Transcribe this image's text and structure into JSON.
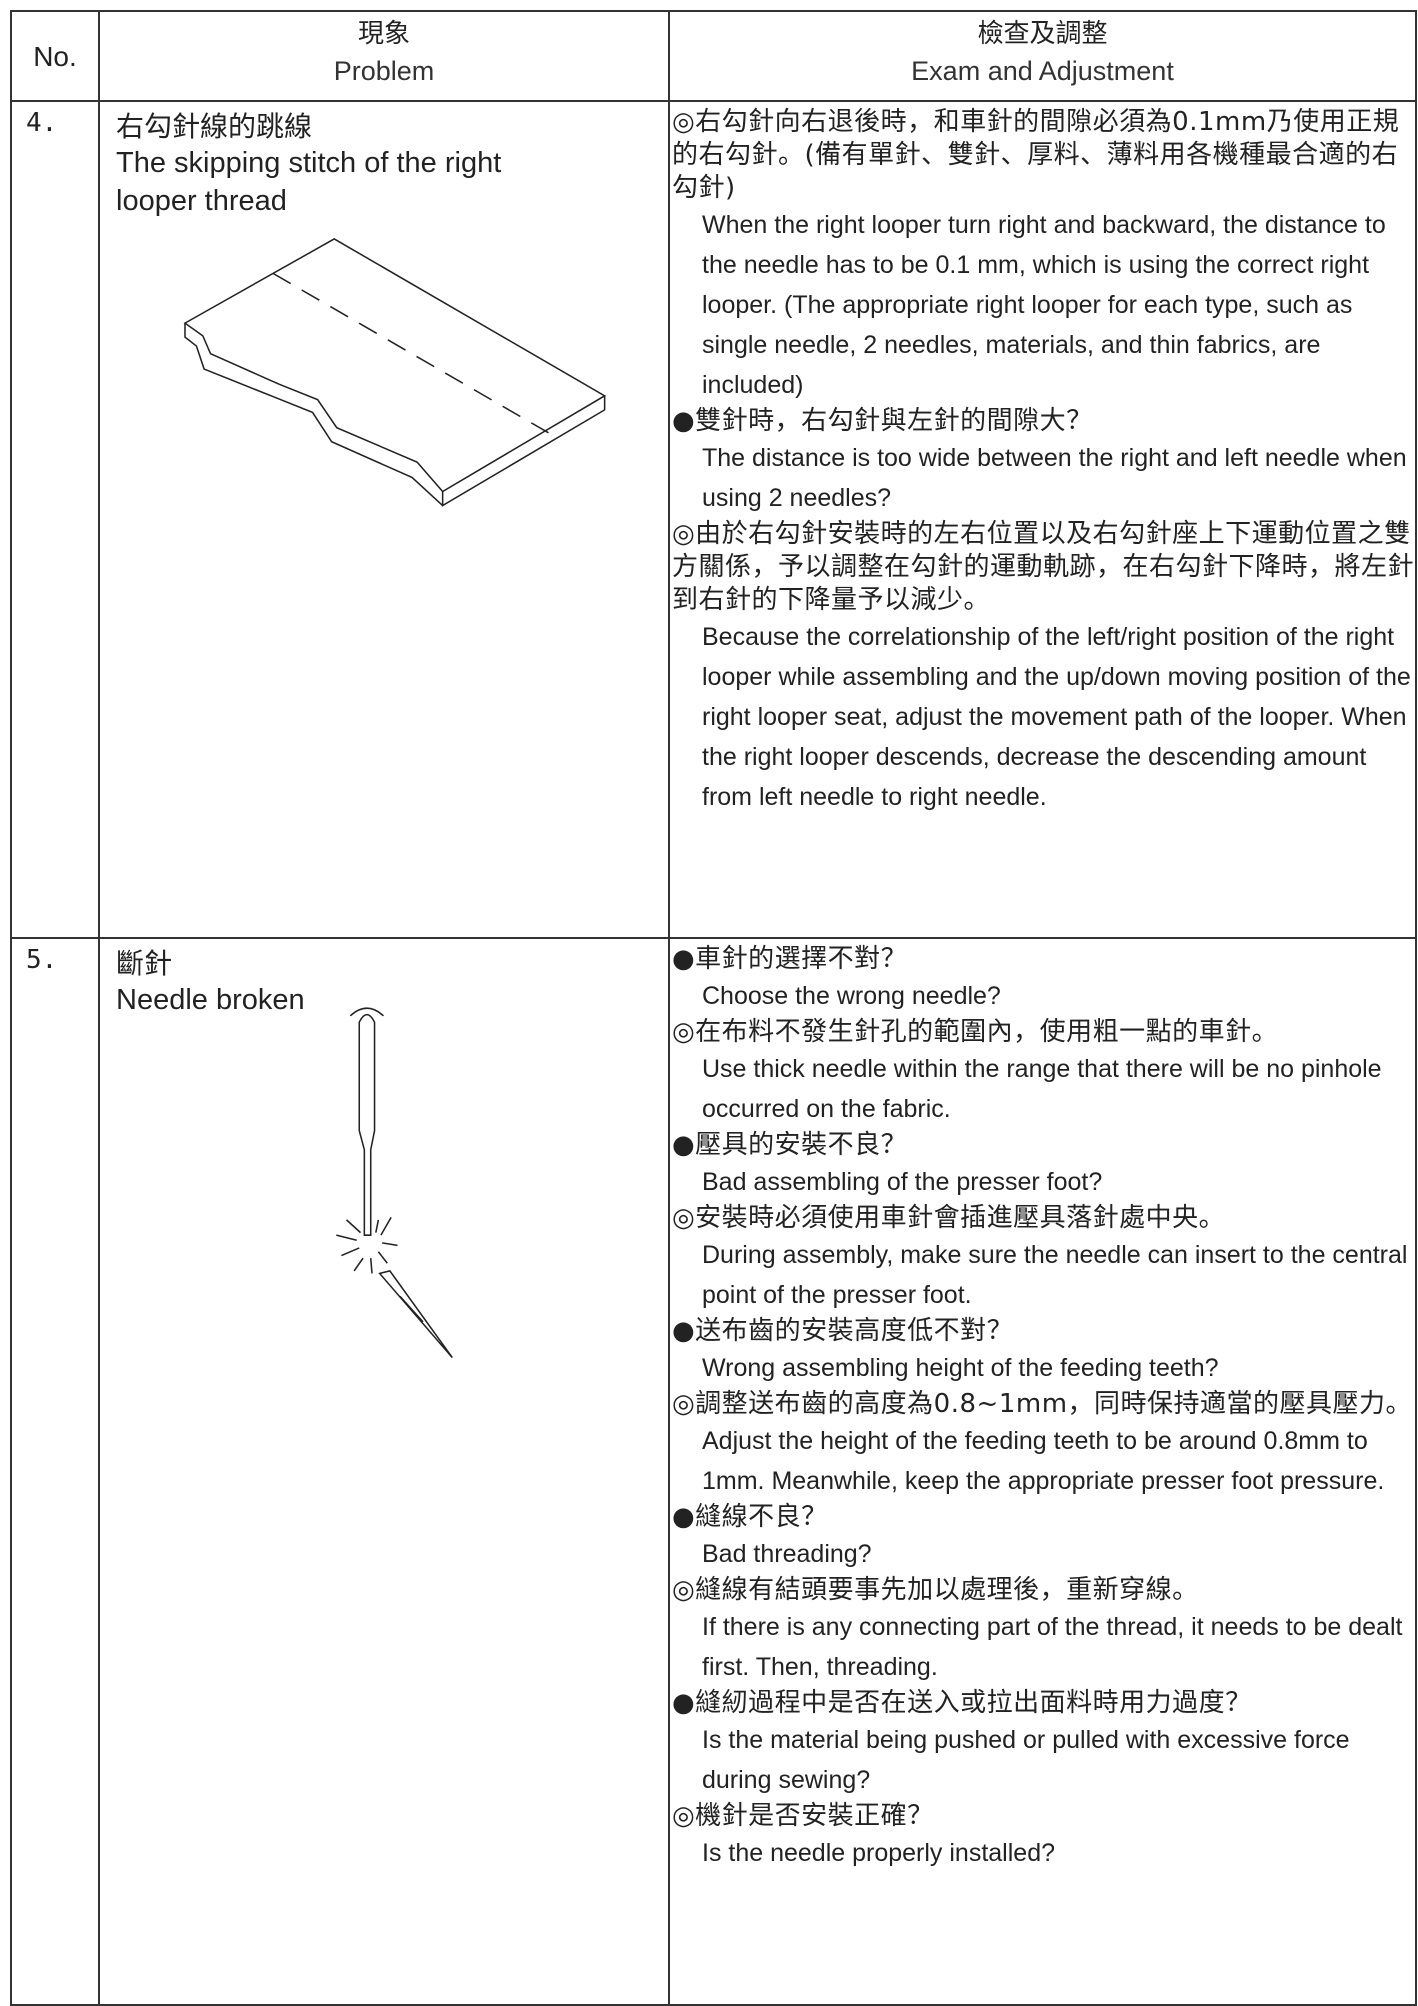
{
  "table": {
    "header": {
      "no": "No.",
      "problem_zh": "現象",
      "problem_en": "Problem",
      "exam_zh": "檢查及調整",
      "exam_en": "Exam and Adjustment"
    },
    "rows": [
      {
        "no": "4.",
        "problem_zh": "右勾針線的跳線",
        "problem_en": "The skipping stitch of the right looper thread",
        "items": [
          {
            "zh": "◎右勾針向右退後時，和車針的間隙必須為0.1mm乃使用正規的右勾針。(備有單針、雙針、厚料、薄料用各機種最合適的右勾針)",
            "en": "When the right looper turn right and backward, the distance to the needle has to be 0.1 mm, which is using the correct right looper. (The appropriate right looper for each type, such as single needle, 2 needles, materials, and thin fabrics, are included)"
          },
          {
            "zh": "●雙針時，右勾針與左針的間隙大？",
            "en": "The distance is too wide between the right and left needle when using 2 needles?"
          },
          {
            "zh": "◎由於右勾針安裝時的左右位置以及右勾針座上下運動位置之雙方關係，予以調整在勾針的運動軌跡，在右勾針下降時，將左針到右針的下降量予以減少。",
            "en": "Because the correlationship of the left/right position of the right looper while assembling and the up/down moving position of the right looper seat, adjust the movement path of the looper. When the right looper descends, decrease the descending amount from left needle to right needle."
          }
        ]
      },
      {
        "no": "5.",
        "problem_zh": "斷針",
        "problem_en": "Needle broken",
        "items": [
          {
            "zh": "●車針的選擇不對？",
            "en": "Choose the wrong needle?"
          },
          {
            "zh": "◎在布料不發生針孔的範圍內，使用粗一點的車針。",
            "en": "Use thick needle within the range that there will be no pinhole occurred on the fabric."
          },
          {
            "zh": "●壓具的安裝不良？",
            "en": "Bad assembling of the presser foot?"
          },
          {
            "zh": "◎安裝時必須使用車針會插進壓具落針處中央。",
            "en": "During assembly, make sure the needle can insert to the central point of the presser foot."
          },
          {
            "zh": "●送布齒的安裝高度低不對？",
            "en": "Wrong assembling height of the feeding teeth?"
          },
          {
            "zh": "◎調整送布齒的高度為0.8~1mm，同時保持適當的壓具壓力。",
            "en": "Adjust the height of the feeding teeth to be around 0.8mm to 1mm. Meanwhile, keep the appropriate presser foot pressure."
          },
          {
            "zh": "●縫線不良？",
            "en": "Bad threading?"
          },
          {
            "zh": "◎縫線有結頭要事先加以處理後，重新穿線。",
            "en": "If there is any connecting part of the thread, it needs to be dealt first. Then, threading."
          },
          {
            "zh": "●縫紉過程中是否在送入或拉出面料時用力過度？",
            "en": "Is the material being pushed or pulled with excessive force during sewing?"
          },
          {
            "zh": "◎機針是否安裝正確？",
            "en": "Is the needle properly installed?"
          }
        ]
      }
    ]
  }
}
